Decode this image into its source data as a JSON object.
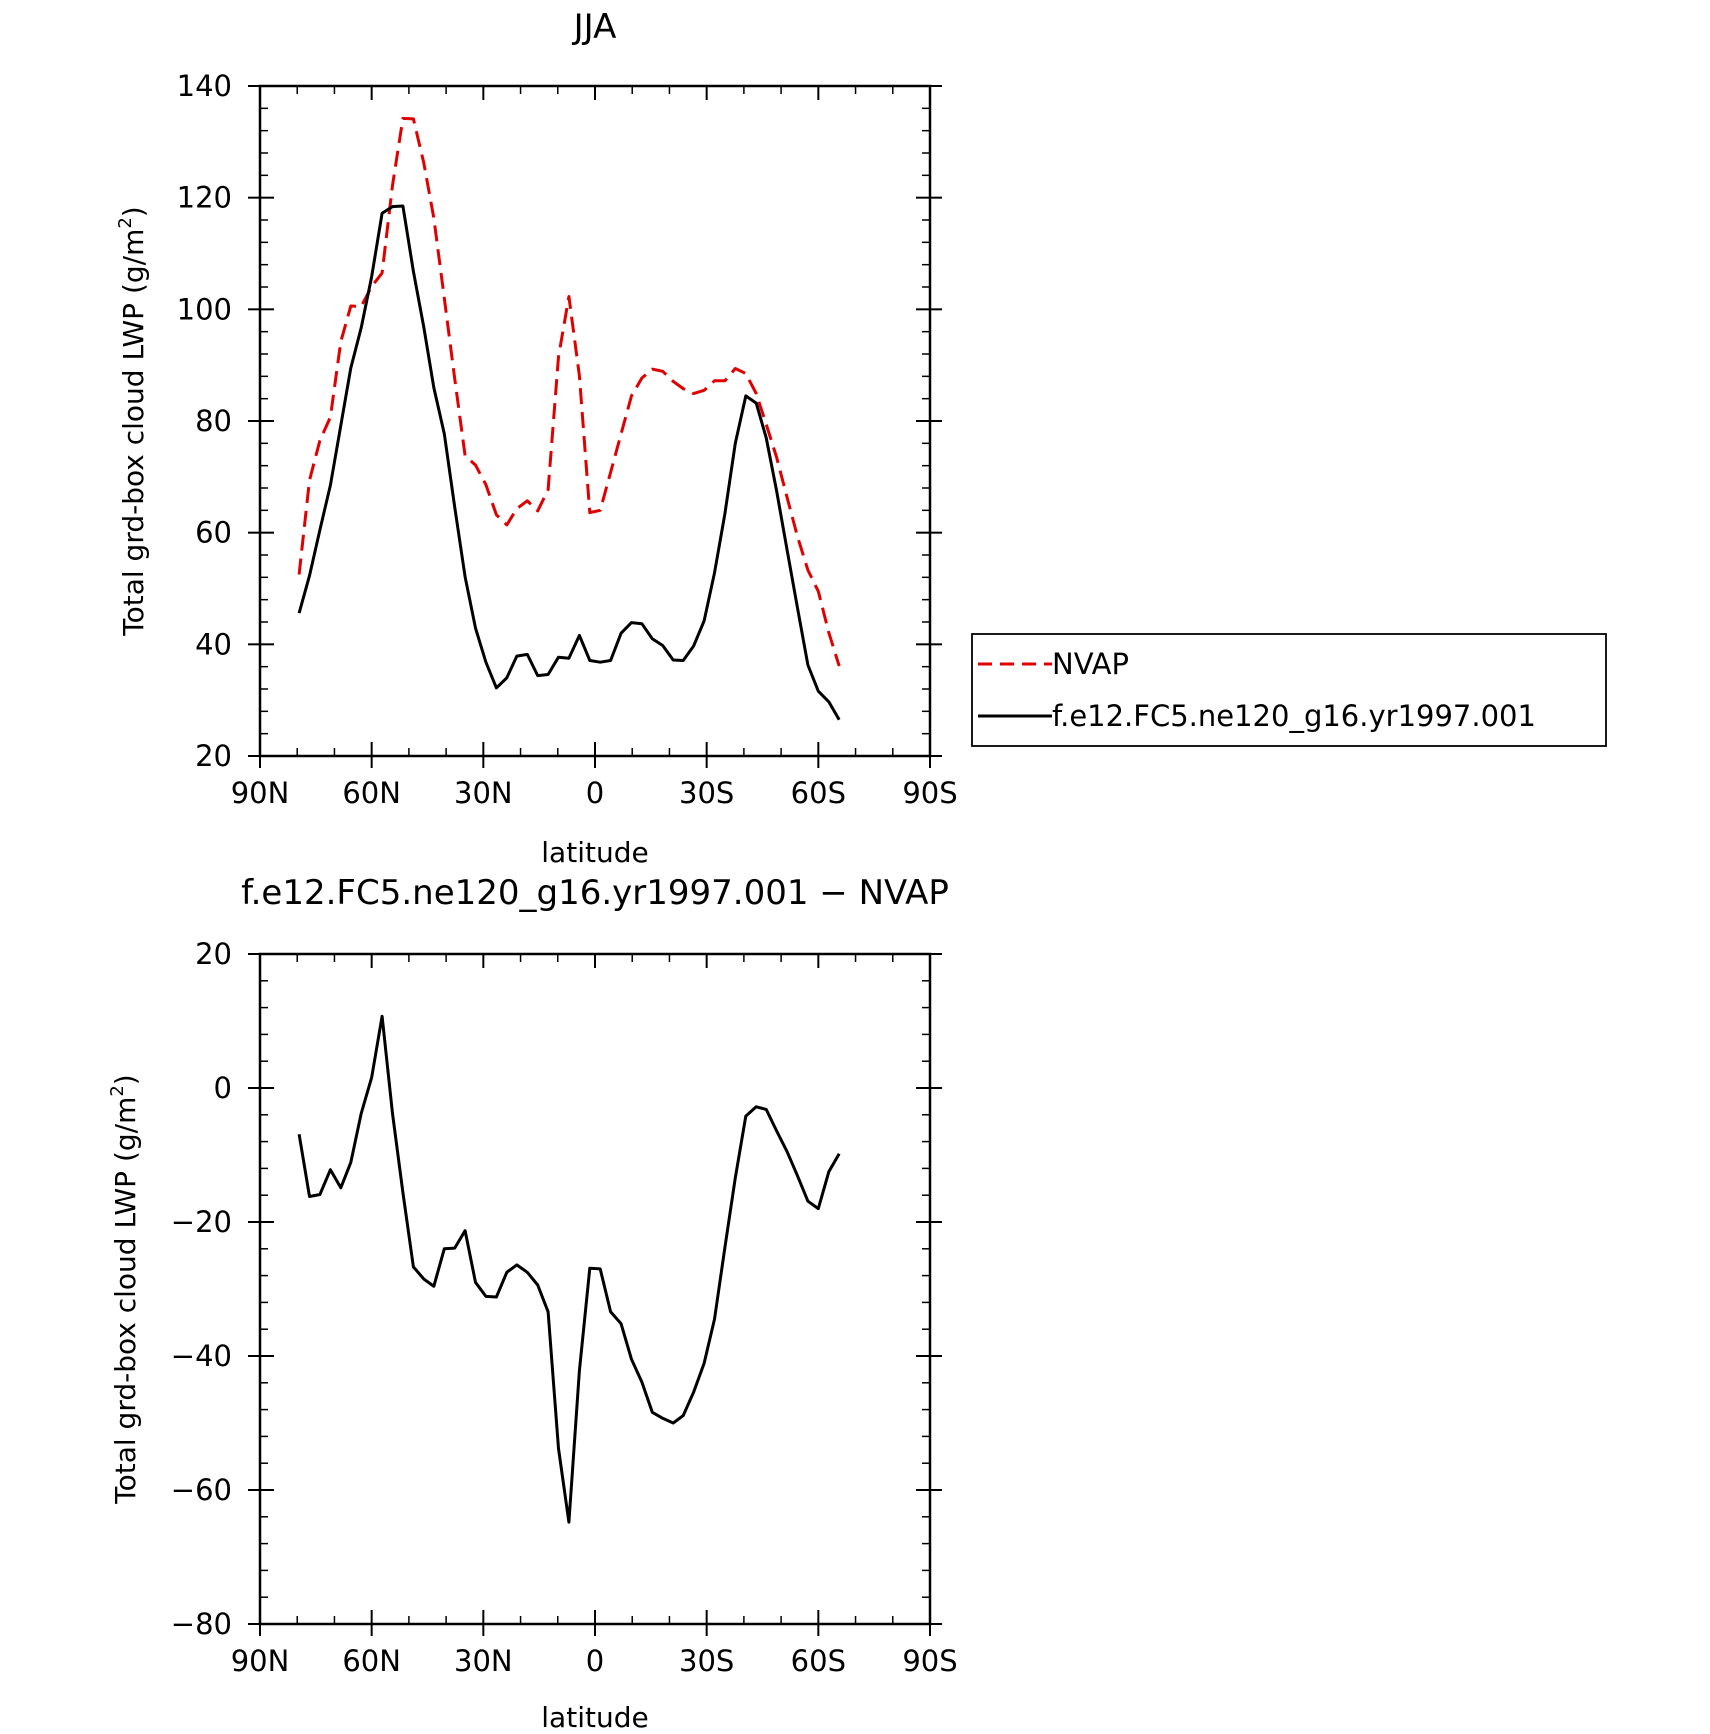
{
  "chart_data": [
    {
      "type": "line",
      "title": "JJA",
      "xlabel": "latitude",
      "ylabel": "Total grd-box cloud LWP (g/m",
      "ylabel_sup": "2",
      "ylabel_close": ")",
      "xlim": [
        90,
        -90
      ],
      "ylim": [
        20,
        140
      ],
      "x_ticks": [
        90,
        60,
        30,
        0,
        -30,
        -60,
        -90
      ],
      "x_tick_labels": [
        "90N",
        "60N",
        "30N",
        "0",
        "30S",
        "60S",
        "90S"
      ],
      "y_ticks": [
        20,
        40,
        60,
        80,
        100,
        120,
        140
      ],
      "y_tick_labels": [
        "20",
        "40",
        "60",
        "80",
        "100",
        "120",
        "140"
      ],
      "legend_position": "right",
      "series": [
        {
          "name": "NVAP",
          "color": "#e00000",
          "dash": "dashed",
          "x": [
            79.5,
            76.7,
            73.9,
            71.1,
            68.3,
            65.6,
            62.8,
            60,
            57.2,
            54.4,
            51.6,
            48.8,
            46,
            43.3,
            40.5,
            37.7,
            34.9,
            32.1,
            29.3,
            26.5,
            23.7,
            21,
            18.2,
            15.4,
            12.6,
            9.8,
            7,
            4.2,
            1.4,
            -1.4,
            -4.2,
            -7,
            -9.8,
            -12.6,
            -15.4,
            -18.2,
            -21,
            -23.7,
            -26.5,
            -29.3,
            -32.1,
            -34.9,
            -37.7,
            -40.5,
            -43.3,
            -46,
            -48.8,
            -51.6,
            -54.4,
            -57.2,
            -60,
            -62.8,
            -65.6
          ],
          "values": [
            52.5,
            69.4,
            76.5,
            80.7,
            94.2,
            100.6,
            100.5,
            104.1,
            106.5,
            122.2,
            134.2,
            134.1,
            126.2,
            116.4,
            102,
            87.6,
            73.8,
            72.1,
            68.6,
            63.2,
            61.4,
            64.3,
            65.7,
            63.9,
            67.7,
            91.5,
            102.3,
            88.1,
            63.6,
            64,
            70.8,
            77.7,
            84.5,
            87.7,
            89.3,
            88.9,
            87.1,
            85.8,
            84.9,
            85.5,
            87.2,
            87.2,
            89.4,
            88.5,
            84.9,
            79.4,
            73.5,
            66.3,
            59.3,
            53.3,
            49.5,
            42.1,
            36.1
          ]
        },
        {
          "name": "f.e12.FC5.ne120_g16.yr1997.001",
          "color": "#000000",
          "dash": "solid",
          "x": [
            79.5,
            76.7,
            73.9,
            71.1,
            68.3,
            65.6,
            62.8,
            60,
            57.2,
            54.4,
            51.6,
            48.8,
            46,
            43.3,
            40.5,
            37.7,
            34.9,
            32.1,
            29.3,
            26.5,
            23.7,
            21,
            18.2,
            15.4,
            12.6,
            9.8,
            7,
            4.2,
            1.4,
            -1.4,
            -4.2,
            -7,
            -9.8,
            -12.6,
            -15.4,
            -18.2,
            -21,
            -23.7,
            -26.5,
            -29.3,
            -32.1,
            -34.9,
            -37.7,
            -40.5,
            -43.3,
            -46,
            -48.8,
            -51.6,
            -54.4,
            -57.2,
            -60,
            -62.8,
            -65.6
          ],
          "values": [
            45.6,
            52.3,
            60.5,
            68.5,
            79.2,
            89.5,
            96.7,
            105.9,
            117.2,
            118.4,
            118.5,
            106.8,
            96.8,
            86,
            77.7,
            64.6,
            52.1,
            42.9,
            36.8,
            32.2,
            34,
            37.9,
            38.2,
            34.4,
            34.6,
            37.7,
            37.5,
            41.6,
            37.1,
            36.8,
            37.1,
            42,
            43.9,
            43.7,
            41,
            39.8,
            37.2,
            37.1,
            39.7,
            44.2,
            52.8,
            63.4,
            76,
            84.5,
            83.2,
            77,
            67.5,
            56.9,
            46.5,
            36.3,
            31.6,
            29.7,
            26.5
          ]
        }
      ]
    },
    {
      "type": "line",
      "title": "f.e12.FC5.ne120_g16.yr1997.001 − NVAP",
      "xlabel": "latitude",
      "ylabel": "Total grd-box cloud LWP (g/m",
      "ylabel_sup": "2",
      "ylabel_close": ")",
      "xlim": [
        90,
        -90
      ],
      "ylim": [
        -80,
        20
      ],
      "x_ticks": [
        90,
        60,
        30,
        0,
        -30,
        -60,
        -90
      ],
      "x_tick_labels": [
        "90N",
        "60N",
        "30N",
        "0",
        "30S",
        "60S",
        "90S"
      ],
      "y_ticks": [
        -80,
        -60,
        -40,
        -20,
        0,
        20
      ],
      "y_tick_labels": [
        "−80",
        "−60",
        "−40",
        "−20",
        "0",
        "20"
      ],
      "series": [
        {
          "color": "#000000",
          "dash": "solid",
          "x": [
            79.5,
            76.7,
            73.9,
            71.1,
            68.3,
            65.6,
            62.8,
            60,
            57.2,
            54.4,
            51.6,
            48.8,
            46,
            43.3,
            40.5,
            37.7,
            34.9,
            32.1,
            29.3,
            26.5,
            23.7,
            21,
            18.2,
            15.4,
            12.6,
            9.8,
            7,
            4.2,
            1.4,
            -1.4,
            -4.2,
            -7,
            -9.8,
            -12.6,
            -15.4,
            -18.2,
            -21,
            -23.7,
            -26.5,
            -29.3,
            -32.1,
            -34.9,
            -37.7,
            -40.5,
            -43.3,
            -46,
            -48.8,
            -51.6,
            -54.4,
            -57.2,
            -60,
            -62.8,
            -65.6
          ],
          "values": [
            -6.9,
            -16.2,
            -15.9,
            -12.2,
            -14.9,
            -11.1,
            -3.8,
            1.6,
            10.7,
            -3.8,
            -15.6,
            -26.7,
            -28.5,
            -29.6,
            -24,
            -23.9,
            -21.3,
            -29,
            -31.1,
            -31.2,
            -27.5,
            -26.4,
            -27.5,
            -29.4,
            -33.4,
            -53.8,
            -64.8,
            -42.2,
            -26.9,
            -27,
            -33.4,
            -35.2,
            -40.5,
            -43.9,
            -48.4,
            -49.3,
            -50,
            -48.9,
            -45.4,
            -41.1,
            -34.5,
            -23.8,
            -13.4,
            -4.2,
            -2.8,
            -3.2,
            -6.4,
            -9.5,
            -13.1,
            -16.9,
            -18,
            -12.5,
            -9.8
          ]
        }
      ]
    }
  ]
}
